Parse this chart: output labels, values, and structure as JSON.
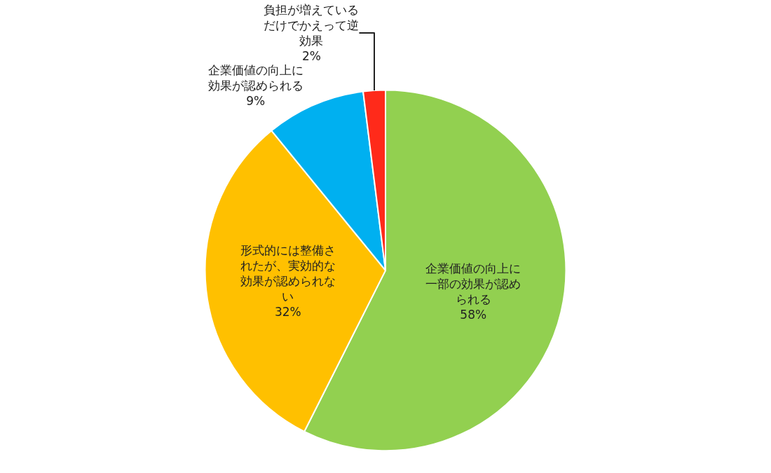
{
  "chart_data": {
    "type": "pie",
    "categories": [
      "企業価値の向上に一部の効果が認められる",
      "形式的には整備されたが、実効的な効果が認められない",
      "企業価値の向上に効果が認められる",
      "負担が増えているだけでかえって逆効果"
    ],
    "values": [
      58,
      32,
      9,
      2
    ],
    "value_labels": [
      "58%",
      "32%",
      "9%",
      "2%"
    ],
    "colors": [
      "#92d050",
      "#ffc000",
      "#00b0f0",
      "#ff2a1a"
    ],
    "legend": false
  }
}
